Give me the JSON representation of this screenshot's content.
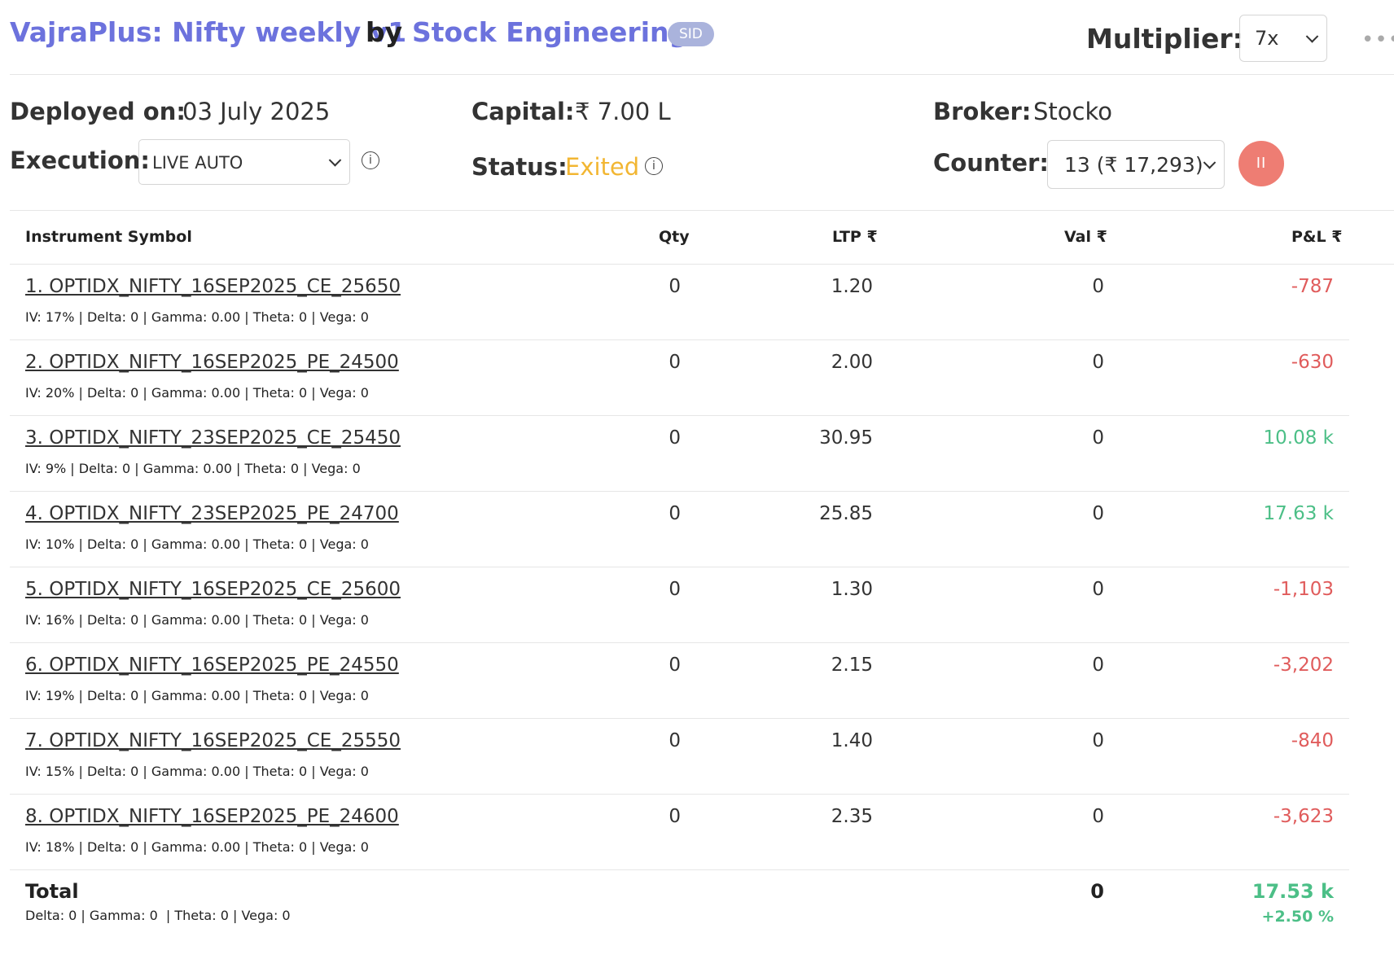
{
  "header": {
    "title": "VajraPlus: Nifty weekly v1",
    "by": "by",
    "owner": "Stock Engineering",
    "badge": "SID",
    "multiplier_label": "Multiplier:",
    "multiplier_value": "7x",
    "more_icon": "more-horizontal-icon"
  },
  "info": {
    "deployed_label": "Deployed on:",
    "deployed_value": "03 July 2025",
    "capital_label": "Capital:",
    "capital_value": "₹ 7.00 L",
    "broker_label": "Broker:",
    "broker_value": "Stocko",
    "execution_label": "Execution:",
    "execution_value": "LIVE AUTO",
    "status_label": "Status:",
    "status_value": "Exited",
    "counter_label": "Counter:",
    "counter_value": "13 (₹ 17,293)",
    "pause_glyph": "II"
  },
  "colors": {
    "brand": "#6c72dd",
    "status_exited": "#f2b632",
    "loss": "#e05c5c",
    "profit": "#4cbf87",
    "pause_button": "#ee7d73"
  },
  "table": {
    "headers": {
      "symbol": "Instrument Symbol",
      "qty": "Qty",
      "ltp": "LTP ₹",
      "val": "Val ₹",
      "pnl": "P&L ₹"
    },
    "rows": [
      {
        "symbol": "1. OPTIDX_NIFTY_16SEP2025_CE_25650",
        "greeks": "IV: 17% | Delta: 0 | Gamma: 0.00 | Theta: 0 | Vega: 0",
        "qty": "0",
        "ltp": "1.20",
        "val": "0",
        "pnl": "-787",
        "pnl_sign": "neg"
      },
      {
        "symbol": "2. OPTIDX_NIFTY_16SEP2025_PE_24500",
        "greeks": "IV: 20% | Delta: 0 | Gamma: 0.00 | Theta: 0 | Vega: 0",
        "qty": "0",
        "ltp": "2.00",
        "val": "0",
        "pnl": "-630",
        "pnl_sign": "neg"
      },
      {
        "symbol": "3. OPTIDX_NIFTY_23SEP2025_CE_25450",
        "greeks": "IV: 9% | Delta: 0 | Gamma: 0.00 | Theta: 0 | Vega: 0",
        "qty": "0",
        "ltp": "30.95",
        "val": "0",
        "pnl": "10.08 k",
        "pnl_sign": "pos"
      },
      {
        "symbol": "4. OPTIDX_NIFTY_23SEP2025_PE_24700",
        "greeks": "IV: 10% | Delta: 0 | Gamma: 0.00 | Theta: 0 | Vega: 0",
        "qty": "0",
        "ltp": "25.85",
        "val": "0",
        "pnl": "17.63 k",
        "pnl_sign": "pos"
      },
      {
        "symbol": "5. OPTIDX_NIFTY_16SEP2025_CE_25600",
        "greeks": "IV: 16% | Delta: 0 | Gamma: 0.00 | Theta: 0 | Vega: 0",
        "qty": "0",
        "ltp": "1.30",
        "val": "0",
        "pnl": "-1,103",
        "pnl_sign": "neg"
      },
      {
        "symbol": "6. OPTIDX_NIFTY_16SEP2025_PE_24550",
        "greeks": "IV: 19% | Delta: 0 | Gamma: 0.00 | Theta: 0 | Vega: 0",
        "qty": "0",
        "ltp": "2.15",
        "val": "0",
        "pnl": "-3,202",
        "pnl_sign": "neg"
      },
      {
        "symbol": "7. OPTIDX_NIFTY_16SEP2025_CE_25550",
        "greeks": "IV: 15% | Delta: 0 | Gamma: 0.00 | Theta: 0 | Vega: 0",
        "qty": "0",
        "ltp": "1.40",
        "val": "0",
        "pnl": "-840",
        "pnl_sign": "neg"
      },
      {
        "symbol": "8. OPTIDX_NIFTY_16SEP2025_PE_24600",
        "greeks": "IV: 18% | Delta: 0 | Gamma: 0.00 | Theta: 0 | Vega: 0",
        "qty": "0",
        "ltp": "2.35",
        "val": "0",
        "pnl": "-3,623",
        "pnl_sign": "neg"
      }
    ],
    "total": {
      "label": "Total",
      "greeks": "Delta: 0 | Gamma: 0  | Theta: 0 | Vega: 0",
      "val": "0",
      "pnl": "17.53 k",
      "pnl_pct": "+2.50 %"
    }
  }
}
